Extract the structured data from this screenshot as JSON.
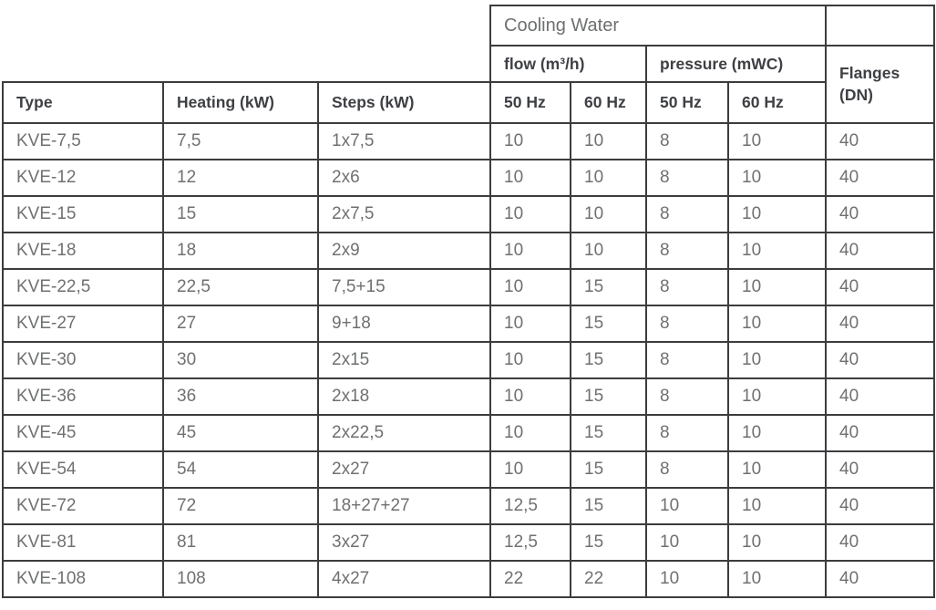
{
  "table": {
    "group_header": {
      "cooling_water": "Cooling Water",
      "flow": "flow (m³/h)",
      "pressure": "pressure (mWC)",
      "flanges": "Flanges (DN)"
    },
    "columns": [
      "Type",
      "Heating (kW)",
      "Steps (kW)",
      "50 Hz",
      "60 Hz",
      "50 Hz",
      "60 Hz"
    ],
    "column_keys": [
      "type",
      "heating_kw",
      "steps_kw",
      "flow_50hz",
      "flow_60hz",
      "pressure_50hz",
      "pressure_60hz",
      "flanges_dn"
    ],
    "rows": [
      [
        "KVE-7,5",
        "7,5",
        "1x7,5",
        "10",
        "10",
        "8",
        "10",
        "40"
      ],
      [
        "KVE-12",
        "12",
        "2x6",
        "10",
        "10",
        "8",
        "10",
        "40"
      ],
      [
        "KVE-15",
        "15",
        "2x7,5",
        "10",
        "10",
        "8",
        "10",
        "40"
      ],
      [
        "KVE-18",
        "18",
        "2x9",
        "10",
        "10",
        "8",
        "10",
        "40"
      ],
      [
        "KVE-22,5",
        "22,5",
        "7,5+15",
        "10",
        "15",
        "8",
        "10",
        "40"
      ],
      [
        "KVE-27",
        "27",
        "9+18",
        "10",
        "15",
        "8",
        "10",
        "40"
      ],
      [
        "KVE-30",
        "30",
        "2x15",
        "10",
        "15",
        "8",
        "10",
        "40"
      ],
      [
        "KVE-36",
        "36",
        "2x18",
        "10",
        "15",
        "8",
        "10",
        "40"
      ],
      [
        "KVE-45",
        "45",
        "2x22,5",
        "10",
        "15",
        "8",
        "10",
        "40"
      ],
      [
        "KVE-54",
        "54",
        "2x27",
        "10",
        "15",
        "8",
        "10",
        "40"
      ],
      [
        "KVE-72",
        "72",
        "18+27+27",
        "12,5",
        "15",
        "10",
        "10",
        "40"
      ],
      [
        "KVE-81",
        "81",
        "3x27",
        "12,5",
        "15",
        "10",
        "10",
        "40"
      ],
      [
        "KVE-108",
        "108",
        "4x27",
        "22",
        "22",
        "10",
        "10",
        "40"
      ]
    ],
    "colors": {
      "border": "#3b3c3e",
      "header_text": "#3e4044",
      "body_text": "#6e7072",
      "background": "#ffffff"
    }
  }
}
